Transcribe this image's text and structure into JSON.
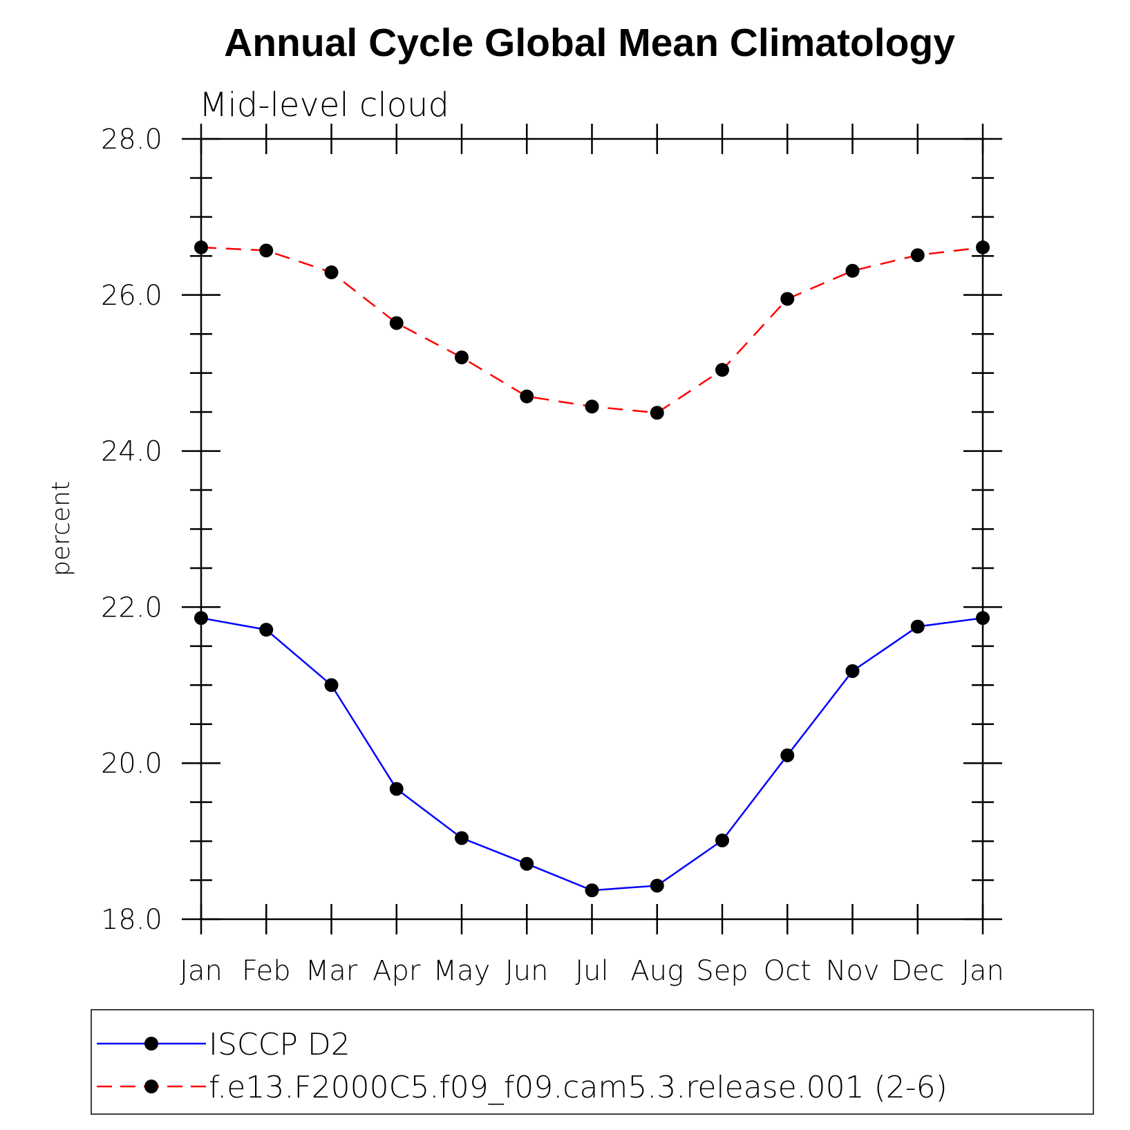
{
  "chart_data": {
    "type": "line",
    "title": "Annual Cycle Global Mean Climatology",
    "subtitle": "Mid-level cloud",
    "xlabel": "",
    "ylabel": "percent",
    "categories": [
      "Jan",
      "Feb",
      "Mar",
      "Apr",
      "May",
      "Jun",
      "Jul",
      "Aug",
      "Sep",
      "Oct",
      "Nov",
      "Dec",
      "Jan"
    ],
    "ylim": [
      18.0,
      28.0
    ],
    "yticks": [
      "18.0",
      "20.0",
      "22.0",
      "24.0",
      "26.0",
      "28.0"
    ],
    "grid": false,
    "legend_position": "bottom",
    "series": [
      {
        "name": "ISCCP D2",
        "color": "#0000ff",
        "line_style": "solid",
        "marker": "filled-circle",
        "values": [
          21.86,
          21.71,
          21.0,
          19.67,
          19.04,
          18.71,
          18.37,
          18.43,
          19.01,
          20.1,
          21.18,
          21.75,
          21.86
        ]
      },
      {
        "name": "f.e13.F2000C5.f09_f09.cam5.3.release.001 (2-6)",
        "color": "#ff0000",
        "line_style": "dashed",
        "marker": "filled-circle",
        "values": [
          26.61,
          26.57,
          26.29,
          25.64,
          25.2,
          24.7,
          24.57,
          24.49,
          25.04,
          25.95,
          26.31,
          26.51,
          26.61
        ]
      }
    ]
  }
}
